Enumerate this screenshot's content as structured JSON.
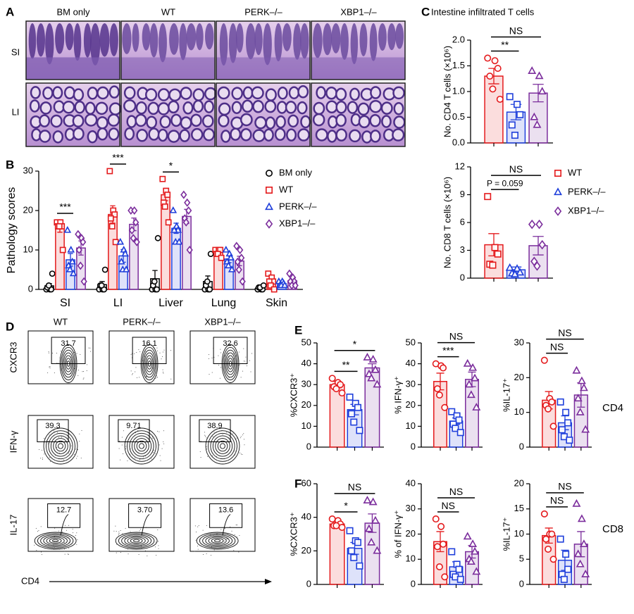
{
  "panel_labels": [
    "A",
    "B",
    "C",
    "D",
    "E",
    "F"
  ],
  "histology": {
    "columns": [
      "BM only",
      "WT",
      "PERK–/–",
      "XBP1–/–"
    ],
    "rows": [
      "SI",
      "LI"
    ]
  },
  "flow": {
    "columns": [
      "WT",
      "PERK–/–",
      "XBP1–/–"
    ],
    "rows": [
      "CXCR3",
      "IFN-γ",
      "IL-17"
    ],
    "gates": [
      [
        "31.7",
        "16.1",
        "32.6"
      ],
      [
        "39.3",
        "9.71",
        "38.9"
      ],
      [
        "12.7",
        "3.70",
        "13.6"
      ]
    ],
    "x_label": "CD4"
  },
  "chart_data": [
    {
      "type": "bar",
      "ylabel": "Pathology scores",
      "categories": [
        "SI",
        "LI",
        "Liver",
        "Lung",
        "Skin"
      ],
      "ylim": [
        0,
        30
      ],
      "yticks": [
        0,
        10,
        20,
        30
      ],
      "legend": true,
      "series": [
        {
          "name": "BM only",
          "color": "#000000",
          "marker": "circle",
          "values": [
            0.9,
            1.2,
            2.7,
            2,
            0.3
          ],
          "errors": [
            0.6,
            0.8,
            2.1,
            1.4,
            0.2
          ],
          "points": [
            [
              0,
              0,
              0,
              0.5,
              1,
              4
            ],
            [
              0,
              0,
              0,
              1,
              1,
              5
            ],
            [
              0,
              0,
              0,
              1,
              2,
              13
            ],
            [
              0,
              0,
              0,
              1,
              2,
              9
            ],
            [
              0,
              0,
              0,
              0.5,
              0.5,
              1
            ]
          ]
        },
        {
          "name": "WT",
          "color": "#e41a1c",
          "marker": "square",
          "values": [
            16,
            19,
            24,
            9.5,
            2
          ],
          "errors": [
            1.5,
            2.2,
            1.5,
            0.4,
            0.6
          ],
          "points": [
            [
              17,
              17,
              16,
              16,
              16,
              10
            ],
            [
              30,
              20,
              19,
              18,
              16,
              12
            ],
            [
              28,
              25,
              24,
              22,
              21,
              17
            ],
            [
              10,
              10,
              10,
              9,
              9,
              8
            ],
            [
              4,
              3,
              2,
              2,
              1,
              0
            ]
          ]
        },
        {
          "name": "PERK–/–",
          "color": "#1f3fdb",
          "marker": "triangle",
          "values": [
            7.5,
            8.5,
            15.5,
            7.7,
            1.5
          ],
          "errors": [
            1.6,
            1.6,
            1.3,
            0.9,
            0.3
          ],
          "points": [
            [
              15,
              10,
              7,
              6,
              5,
              4
            ],
            [
              12,
              10,
              9,
              7,
              5,
              5
            ],
            [
              20,
              16,
              15,
              15,
              12,
              12
            ],
            [
              10,
              9,
              8,
              7,
              6,
              5
            ],
            [
              2,
              2,
              1.5,
              1,
              1,
              1
            ]
          ]
        },
        {
          "name": "XBP1–/–",
          "color": "#7b2d9c",
          "marker": "diamond",
          "values": [
            10.5,
            16.5,
            18.5,
            7.2,
            2.2
          ],
          "errors": [
            1.8,
            1.6,
            1.8,
            1.2,
            0.5
          ],
          "points": [
            [
              14,
              13,
              12,
              10,
              6,
              2
            ],
            [
              20,
              20,
              17,
              15,
              13,
              12
            ],
            [
              24,
              22,
              20,
              18,
              17,
              10
            ],
            [
              11,
              10,
              8,
              7,
              5,
              2
            ],
            [
              4,
              3,
              2,
              2,
              1,
              1
            ]
          ]
        }
      ],
      "annotations": [
        {
          "text": "***",
          "category": "SI",
          "between": [
            1,
            2
          ]
        },
        {
          "text": "***",
          "category": "LI",
          "between": [
            1,
            2
          ]
        },
        {
          "text": "*",
          "category": "Liver",
          "between": [
            1,
            2
          ]
        }
      ]
    },
    {
      "type": "bar",
      "title": "Intestine infiltrated T cells",
      "ylabel": "No. CD4 T cells (×10⁶)",
      "ylim": [
        0,
        2
      ],
      "yticks": [
        {
          "value": 0,
          "label": "0.0"
        },
        0.5,
        {
          "value": 1,
          "label": "1.0"
        },
        1.5,
        {
          "value": 2,
          "label": "2.0"
        }
      ],
      "series": [
        {
          "color": "#e41a1c",
          "marker": "circle",
          "values": [
            1.3
          ],
          "errors": [
            0.15
          ],
          "points": [
            [
              1.65,
              1.6,
              1.45,
              1.3,
              1.05,
              0.85
            ]
          ]
        },
        {
          "color": "#1f3fdb",
          "marker": "square",
          "values": [
            0.6
          ],
          "errors": [
            0.15
          ],
          "points": [
            [
              0.9,
              0.75,
              0.55,
              0.35,
              0.15
            ]
          ]
        },
        {
          "color": "#7b2d9c",
          "marker": "triangle",
          "values": [
            0.97
          ],
          "errors": [
            0.17
          ],
          "points": [
            [
              1.4,
              1.3,
              1,
              0.5,
              0.35
            ]
          ]
        }
      ],
      "annotations": [
        {
          "text": "**",
          "between": [
            0,
            1
          ]
        },
        {
          "text": "NS",
          "between": [
            0,
            2
          ]
        }
      ]
    },
    {
      "type": "bar",
      "ylabel": "No. CD8 T cells (×10⁶)",
      "ylim": [
        0,
        12
      ],
      "yticks": [
        0,
        3,
        6,
        9,
        12
      ],
      "legend": true,
      "series": [
        {
          "name": "WT",
          "color": "#e41a1c",
          "marker": "square",
          "values": [
            3.6
          ],
          "errors": [
            1.2
          ],
          "points": [
            [
              8.8,
              3.3,
              2.6,
              1.5,
              1.4
            ]
          ]
        },
        {
          "name": "PERK–/–",
          "color": "#1f3fdb",
          "marker": "triangle",
          "values": [
            0.9
          ],
          "errors": [
            0.3
          ],
          "points": [
            [
              1.1,
              1,
              0.6,
              0.5,
              0.4
            ]
          ]
        },
        {
          "name": "XBP1–/–",
          "color": "#7b2d9c",
          "marker": "diamond",
          "values": [
            3.5
          ],
          "errors": [
            1
          ],
          "points": [
            [
              5.8,
              5.8,
              3.6,
              1.8,
              1.3
            ]
          ]
        }
      ],
      "annotations": [
        {
          "text": "P = 0.059",
          "between": [
            0,
            1
          ]
        },
        {
          "text": "NS",
          "between": [
            0,
            2
          ]
        }
      ]
    },
    {
      "type": "bar",
      "ylabel": "%CXCR3⁺",
      "ylim": [
        0,
        50
      ],
      "yticks": [
        0,
        10,
        20,
        30,
        40,
        50
      ],
      "series": [
        {
          "color": "#e41a1c",
          "marker": "circle",
          "values": [
            30
          ],
          "errors": [
            1.5
          ],
          "points": [
            [
              33,
              31,
              30,
              29,
              28,
              26
            ]
          ]
        },
        {
          "color": "#1f3fdb",
          "marker": "square",
          "values": [
            18
          ],
          "errors": [
            2.5
          ],
          "points": [
            [
              24,
              21,
              19,
              16,
              12,
              8
            ]
          ]
        },
        {
          "color": "#7b2d9c",
          "marker": "triangle",
          "values": [
            38
          ],
          "errors": [
            2
          ],
          "points": [
            [
              43,
              42,
              37,
              35,
              33,
              30
            ]
          ]
        }
      ],
      "annotations": [
        {
          "text": "**",
          "between": [
            0,
            1
          ]
        },
        {
          "text": "*",
          "between": [
            0,
            2
          ]
        }
      ]
    },
    {
      "type": "bar",
      "ylabel": "% IFN-γ⁺",
      "ylim": [
        0,
        50
      ],
      "yticks": [
        0,
        10,
        20,
        30,
        40,
        50
      ],
      "series": [
        {
          "color": "#e41a1c",
          "marker": "circle",
          "values": [
            31.5
          ],
          "errors": [
            4
          ],
          "points": [
            [
              40,
              39,
              38,
              28,
              25,
              19
            ]
          ]
        },
        {
          "color": "#1f3fdb",
          "marker": "square",
          "values": [
            12.5
          ],
          "errors": [
            1.5
          ],
          "points": [
            [
              17,
              15,
              13,
              11,
              9,
              7
            ]
          ]
        },
        {
          "color": "#7b2d9c",
          "marker": "triangle",
          "values": [
            32.5
          ],
          "errors": [
            3.5
          ],
          "points": [
            [
              40,
              38,
              33,
              30,
              25,
              19
            ]
          ]
        }
      ],
      "annotations": [
        {
          "text": "***",
          "between": [
            0,
            1
          ]
        },
        {
          "text": "NS",
          "between": [
            0,
            2
          ]
        }
      ]
    },
    {
      "type": "bar",
      "ylabel": "%IL-17⁺",
      "ylim": [
        0,
        30
      ],
      "yticks": [
        0,
        10,
        20,
        30
      ],
      "side_label": "CD4",
      "series": [
        {
          "color": "#e41a1c",
          "marker": "circle",
          "values": [
            13.5
          ],
          "errors": [
            2.5
          ],
          "points": [
            [
              25,
              14,
              13,
              12,
              11,
              6
            ]
          ]
        },
        {
          "color": "#1f3fdb",
          "marker": "square",
          "values": [
            7
          ],
          "errors": [
            2
          ],
          "points": [
            [
              13,
              10,
              7,
              5,
              3,
              2
            ]
          ]
        },
        {
          "color": "#7b2d9c",
          "marker": "triangle",
          "values": [
            15
          ],
          "errors": [
            3.5
          ],
          "points": [
            [
              22,
              19,
              17,
              14,
              10,
              5
            ]
          ]
        }
      ],
      "annotations": [
        {
          "text": "NS",
          "between": [
            0,
            1
          ]
        },
        {
          "text": "NS",
          "between": [
            0,
            2
          ]
        }
      ]
    },
    {
      "type": "bar",
      "ylabel": "%CXCR3⁺",
      "ylim": [
        0,
        60
      ],
      "yticks": [
        0,
        20,
        40,
        60
      ],
      "series": [
        {
          "color": "#e41a1c",
          "marker": "circle",
          "values": [
            36
          ],
          "errors": [
            1.5
          ],
          "points": [
            [
              39,
              38,
              36,
              35,
              35,
              34
            ]
          ]
        },
        {
          "color": "#1f3fdb",
          "marker": "square",
          "values": [
            21.5
          ],
          "errors": [
            3.5
          ],
          "points": [
            [
              32,
              26,
              25,
              20,
              16,
              11
            ]
          ]
        },
        {
          "color": "#7b2d9c",
          "marker": "triangle",
          "values": [
            36.5
          ],
          "errors": [
            5.5
          ],
          "points": [
            [
              50,
              49,
              38,
              33,
              25,
              20
            ]
          ]
        }
      ],
      "annotations": [
        {
          "text": "*",
          "between": [
            0,
            1
          ]
        },
        {
          "text": "NS",
          "between": [
            0,
            2
          ]
        }
      ]
    },
    {
      "type": "bar",
      "ylabel": "% of IFN-γ⁺",
      "ylim": [
        0,
        40
      ],
      "yticks": [
        0,
        10,
        20,
        30,
        40
      ],
      "series": [
        {
          "color": "#e41a1c",
          "marker": "circle",
          "values": [
            17
          ],
          "errors": [
            4
          ],
          "points": [
            [
              26,
              23,
              16,
              15,
              7,
              3
            ]
          ]
        },
        {
          "color": "#1f3fdb",
          "marker": "square",
          "values": [
            7
          ],
          "errors": [
            2
          ],
          "points": [
            [
              13,
              8,
              6,
              4,
              3,
              2
            ]
          ]
        },
        {
          "color": "#7b2d9c",
          "marker": "triangle",
          "values": [
            13
          ],
          "errors": [
            2.5
          ],
          "points": [
            [
              19,
              16,
              13,
              10,
              9,
              5
            ]
          ]
        }
      ],
      "annotations": [
        {
          "text": "NS",
          "between": [
            0,
            1
          ]
        },
        {
          "text": "NS",
          "between": [
            0,
            2
          ]
        }
      ]
    },
    {
      "type": "bar",
      "ylabel": "%IL-17⁺",
      "ylim": [
        0,
        20
      ],
      "yticks": [
        0,
        5,
        10,
        15,
        20
      ],
      "side_label": "CD8",
      "series": [
        {
          "color": "#e41a1c",
          "marker": "circle",
          "values": [
            9.7
          ],
          "errors": [
            1.5
          ],
          "points": [
            [
              14,
              10,
              10,
              9,
              7,
              5
            ]
          ]
        },
        {
          "color": "#1f3fdb",
          "marker": "square",
          "values": [
            4.8
          ],
          "errors": [
            2
          ],
          "points": [
            [
              9,
              6,
              3,
              2,
              1
            ]
          ]
        },
        {
          "color": "#7b2d9c",
          "marker": "triangle",
          "values": [
            8
          ],
          "errors": [
            2.5
          ],
          "points": [
            [
              16,
              13,
              8,
              6,
              4,
              2
            ]
          ]
        }
      ],
      "annotations": [
        {
          "text": "NS",
          "between": [
            0,
            1
          ]
        },
        {
          "text": "NS",
          "between": [
            0,
            2
          ]
        }
      ]
    }
  ]
}
